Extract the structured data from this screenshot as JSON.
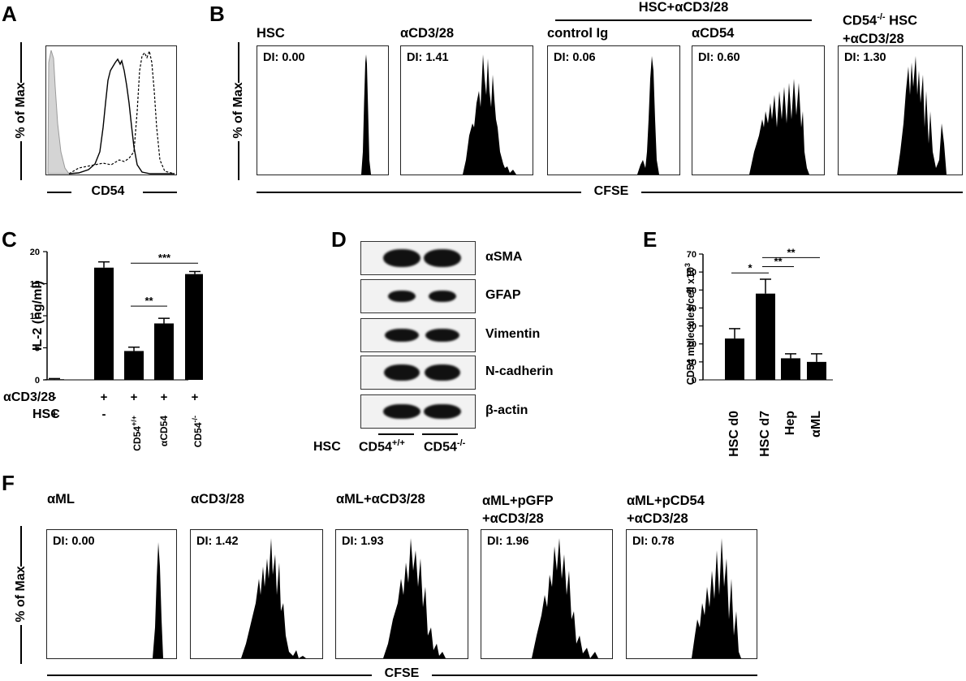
{
  "panelA": {
    "letter": "A",
    "ylabel": "% of Max",
    "xlabel": "CD54"
  },
  "panelB": {
    "letter": "B",
    "ylabel": "% of Max",
    "xlabel": "CFSE",
    "group_header": "HSC+αCD3/28",
    "histograms": [
      {
        "title": "HSC",
        "di": "DI: 0.00"
      },
      {
        "title": "αCD3/28",
        "di": "DI: 1.41"
      },
      {
        "title": "control Ig",
        "di": "DI: 0.06"
      },
      {
        "title": "αCD54",
        "di": "DI: 0.60"
      },
      {
        "title_line1_pre": "CD54",
        "title_line1_sup": "-/-",
        "title_line1_post": " HSC",
        "title_line2": "+αCD3/28",
        "di": "DI: 1.30"
      }
    ]
  },
  "panelC": {
    "letter": "C",
    "chart_data": {
      "type": "bar",
      "ylabel": "IL-2 (ng/ml)",
      "ylim": [
        0,
        20
      ],
      "yticks": [
        "0",
        "5",
        "10",
        "15",
        "20"
      ],
      "values": [
        0.1,
        17.5,
        4.5,
        8.8,
        16.5
      ],
      "errors": [
        0.1,
        0.9,
        0.6,
        0.8,
        0.4
      ],
      "row1_label": "αCD3/28",
      "row2_label": "HSC",
      "row1": [
        "-",
        "+",
        "+",
        "+",
        "+"
      ],
      "row2": [
        "+",
        "-"
      ],
      "rot_labels": [
        {
          "pre": "CD54",
          "sup": "+/+"
        },
        {
          "pre": "αCD54",
          "sup": ""
        },
        {
          "pre": "CD54",
          "sup": "-/-"
        }
      ],
      "significance": [
        {
          "label": "**",
          "from": 2,
          "to": 3
        },
        {
          "label": "***",
          "from": 2,
          "to": 4
        }
      ]
    }
  },
  "panelD": {
    "letter": "D",
    "blots": [
      "αSMA",
      "GFAP",
      "Vimentin",
      "N-cadherin",
      "β-actin"
    ],
    "hsc_label": "HSC",
    "lane1_pre": "CD54",
    "lane1_sup": "+/+",
    "lane2_pre": "CD54",
    "lane2_sup": "-/-"
  },
  "panelE": {
    "letter": "E",
    "chart_data": {
      "type": "bar",
      "ylabel_pre": "CD54 molecules/cell x10",
      "ylabel_sup": "3",
      "ylim": [
        0,
        70
      ],
      "yticks": [
        "0",
        "10",
        "20",
        "30",
        "40",
        "50",
        "60",
        "70"
      ],
      "categories": [
        "HSC d0",
        "HSC d7",
        "Hep",
        "αML"
      ],
      "values": [
        23,
        48,
        12,
        10
      ],
      "errors": [
        5.5,
        8,
        2.5,
        4.5
      ],
      "significance": [
        {
          "label": "*",
          "from": 0,
          "to": 1
        },
        {
          "label": "**",
          "from": 1,
          "to": 2
        },
        {
          "label": "**",
          "from": 1,
          "to": 3
        }
      ]
    }
  },
  "panelF": {
    "letter": "F",
    "ylabel": "% of Max",
    "xlabel": "CFSE",
    "histograms": [
      {
        "title1": "αML",
        "title2": "",
        "di": "DI: 0.00"
      },
      {
        "title1": "αCD3/28",
        "title2": "",
        "di": "DI: 1.42"
      },
      {
        "title1": "αML+αCD3/28",
        "title2": "",
        "di": "DI: 1.93"
      },
      {
        "title1": "αML+pGFP",
        "title2": "+αCD3/28",
        "di": "DI: 1.96"
      },
      {
        "title1": "αML+pCD54",
        "title2": "+αCD3/28",
        "di": "DI: 0.78"
      }
    ]
  }
}
